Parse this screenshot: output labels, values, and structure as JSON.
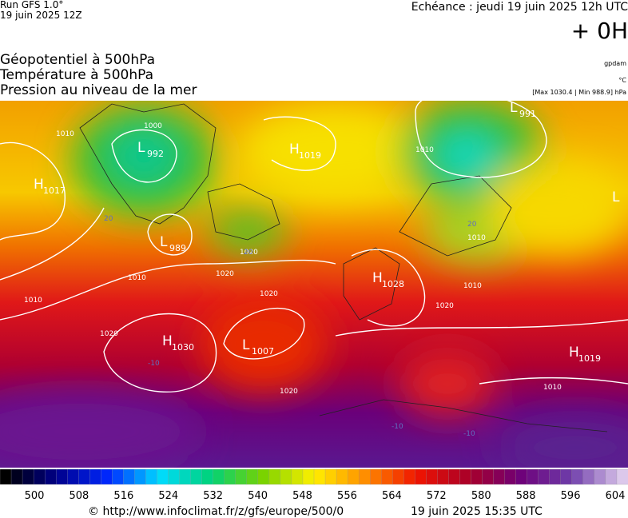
{
  "header": {
    "run": "Run GFS 1.0°",
    "date": "19 juin 2025 12Z",
    "echeance": "Echéance : jeudi 19 juin 2025 12h UTC",
    "offset": "+ 0H"
  },
  "layers": [
    "Géopotentiel à 500hPa",
    "Température à 500hPa",
    "Pression au niveau de la mer"
  ],
  "units": [
    "gpdam",
    "°C",
    "[Max 1030.4 | Min 988.9] hPa"
  ],
  "pressure_centers": [
    {
      "kind": "H",
      "value": "1017"
    },
    {
      "kind": "L",
      "value": "992"
    },
    {
      "kind": "H",
      "value": "1019"
    },
    {
      "kind": "L",
      "value": "989"
    },
    {
      "kind": "H",
      "value": "1028"
    },
    {
      "kind": "H",
      "value": "1030"
    },
    {
      "kind": "L",
      "value": "1007"
    },
    {
      "kind": "H",
      "value": "1019"
    },
    {
      "kind": "L",
      "value": "991"
    },
    {
      "kind": "L"
    }
  ],
  "isobar_labels": [
    "1010",
    "1000",
    "1020",
    "1010",
    "1010",
    "1020",
    "1020",
    "1020",
    "1020",
    "1010",
    "1010",
    "1010",
    "1020",
    "1010"
  ],
  "temperature_labels": [
    "20",
    "20",
    "20",
    "-10",
    "-10",
    "-10"
  ],
  "scale": {
    "ticks": [
      500,
      508,
      516,
      524,
      532,
      540,
      548,
      556,
      564,
      572,
      580,
      588,
      596,
      604
    ]
  },
  "footer": {
    "source": "© http://www.infoclimat.fr/z/gfs/europe/500/0",
    "generated": "19 juin 2025 15:35 UTC"
  }
}
